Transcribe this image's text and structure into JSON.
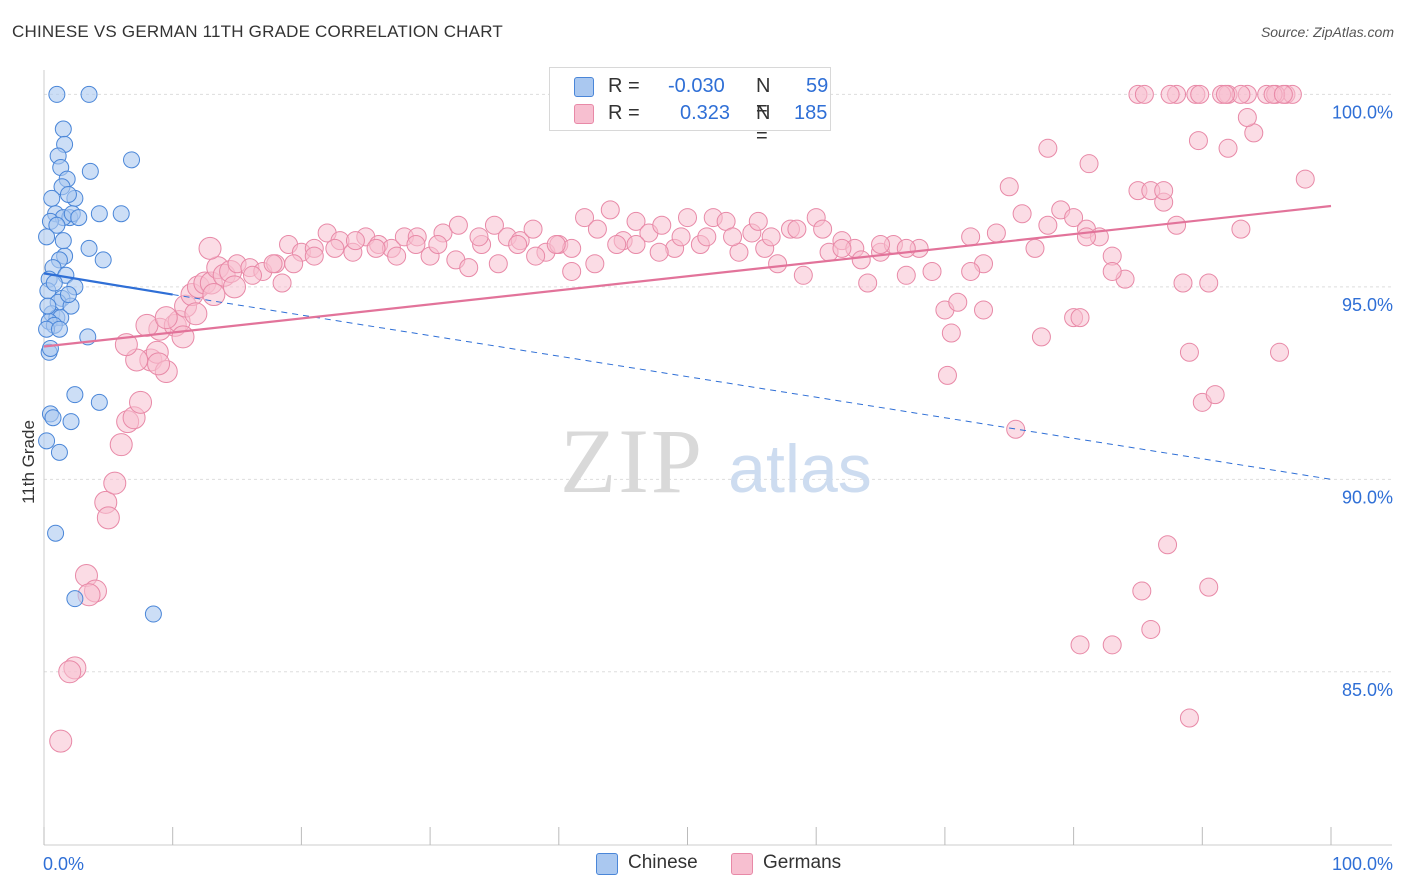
{
  "title": "CHINESE VS GERMAN 11TH GRADE CORRELATION CHART",
  "source": "Source: ZipAtlas.com",
  "watermark": {
    "zip": "ZIP",
    "atlas": "atlas"
  },
  "legend": {
    "rows": [
      {
        "r_label": "R =",
        "r_value": "-0.030",
        "n_label": "N =",
        "n_value": "59"
      },
      {
        "r_label": "R =",
        "r_value": "0.323",
        "n_label": "N =",
        "n_value": "185"
      }
    ]
  },
  "colors": {
    "chinese_fill": "#aac8f0",
    "chinese_stroke": "#4a86d8",
    "chinese_line": "#2f6fd6",
    "german_fill": "#f7bfd0",
    "german_stroke": "#e889a7",
    "german_line": "#e2739a",
    "grid": "#dddddd",
    "axis_text": "#2f6fd6"
  },
  "chart_data": {
    "type": "scatter",
    "title": "CHINESE VS GERMAN 11TH GRADE CORRELATION CHART",
    "xlabel": "",
    "ylabel": "11th Grade",
    "xlim": [
      0,
      100
    ],
    "ylim": [
      80.5,
      100.4
    ],
    "x_tick_labels": [
      "0.0%",
      "100.0%"
    ],
    "y_ticks": [
      {
        "value": 100,
        "label": "100.0%"
      },
      {
        "value": 95,
        "label": "95.0%"
      },
      {
        "value": 90,
        "label": "90.0%"
      },
      {
        "value": 85,
        "label": "85.0%"
      }
    ],
    "grid": true,
    "legend_position": "top-center",
    "series": [
      {
        "name": "Chinese",
        "r": -0.03,
        "n": 59,
        "trend": {
          "x0": 0,
          "y0": 95.35,
          "x1": 10,
          "y1": 94.8,
          "dashed_to_x": 100,
          "dashed_to_y": 90.0
        },
        "points": [
          [
            1.0,
            100.0
          ],
          [
            3.5,
            100.0
          ],
          [
            1.5,
            99.1
          ],
          [
            1.6,
            98.7
          ],
          [
            1.1,
            98.4
          ],
          [
            1.3,
            98.1
          ],
          [
            3.6,
            98.0
          ],
          [
            6.8,
            98.3
          ],
          [
            1.8,
            97.8
          ],
          [
            1.4,
            97.6
          ],
          [
            2.4,
            97.3
          ],
          [
            0.6,
            97.3
          ],
          [
            0.9,
            96.9
          ],
          [
            2.0,
            96.8
          ],
          [
            1.5,
            96.8
          ],
          [
            2.2,
            96.9
          ],
          [
            4.3,
            96.9
          ],
          [
            6.0,
            96.9
          ],
          [
            0.5,
            96.7
          ],
          [
            1.0,
            96.6
          ],
          [
            3.5,
            96.0
          ],
          [
            1.6,
            95.8
          ],
          [
            1.2,
            95.7
          ],
          [
            4.6,
            95.7
          ],
          [
            0.7,
            95.5
          ],
          [
            1.7,
            95.3
          ],
          [
            0.4,
            95.2
          ],
          [
            2.4,
            95.0
          ],
          [
            0.3,
            94.9
          ],
          [
            1.4,
            94.7
          ],
          [
            1.1,
            94.6
          ],
          [
            2.1,
            94.5
          ],
          [
            0.6,
            94.3
          ],
          [
            1.0,
            94.2
          ],
          [
            1.3,
            94.2
          ],
          [
            0.4,
            94.1
          ],
          [
            0.8,
            94.0
          ],
          [
            0.2,
            93.9
          ],
          [
            1.2,
            93.9
          ],
          [
            3.4,
            93.7
          ],
          [
            0.4,
            93.3
          ],
          [
            2.4,
            92.2
          ],
          [
            4.3,
            92.0
          ],
          [
            0.5,
            91.7
          ],
          [
            0.7,
            91.6
          ],
          [
            2.1,
            91.5
          ],
          [
            1.2,
            90.7
          ],
          [
            0.2,
            91.0
          ],
          [
            0.9,
            88.6
          ],
          [
            2.4,
            86.9
          ],
          [
            8.5,
            86.5
          ],
          [
            0.3,
            94.5
          ],
          [
            0.5,
            93.4
          ],
          [
            1.9,
            94.8
          ],
          [
            0.8,
            95.1
          ],
          [
            1.5,
            96.2
          ],
          [
            2.7,
            96.8
          ],
          [
            0.2,
            96.3
          ],
          [
            1.9,
            97.4
          ]
        ]
      },
      {
        "name": "Germans",
        "r": 0.323,
        "n": 185,
        "trend": {
          "x0": 0,
          "y0": 93.45,
          "x1": 100,
          "y1": 97.1
        },
        "points": [
          [
            1.3,
            83.2
          ],
          [
            2.4,
            85.1
          ],
          [
            2.0,
            85.0
          ],
          [
            3.3,
            87.5
          ],
          [
            4.0,
            87.1
          ],
          [
            3.5,
            87.0
          ],
          [
            4.8,
            89.4
          ],
          [
            5.0,
            89.0
          ],
          [
            5.5,
            89.9
          ],
          [
            6.0,
            90.9
          ],
          [
            6.5,
            91.5
          ],
          [
            7.0,
            91.6
          ],
          [
            7.5,
            92.0
          ],
          [
            8.3,
            93.1
          ],
          [
            8.8,
            93.3
          ],
          [
            9.5,
            92.8
          ],
          [
            8.9,
            93.0
          ],
          [
            9.0,
            93.9
          ],
          [
            10.2,
            94.0
          ],
          [
            10.5,
            94.1
          ],
          [
            11.0,
            94.5
          ],
          [
            11.5,
            94.8
          ],
          [
            12.0,
            95.0
          ],
          [
            12.5,
            95.1
          ],
          [
            13.0,
            95.1
          ],
          [
            13.5,
            95.5
          ],
          [
            14.0,
            95.3
          ],
          [
            14.5,
            95.4
          ],
          [
            15.0,
            95.6
          ],
          [
            16.0,
            95.5
          ],
          [
            17.0,
            95.4
          ],
          [
            18.0,
            95.6
          ],
          [
            18.5,
            95.1
          ],
          [
            19.0,
            96.1
          ],
          [
            20.0,
            95.9
          ],
          [
            21.0,
            96.0
          ],
          [
            22.0,
            96.4
          ],
          [
            23.0,
            96.2
          ],
          [
            24.0,
            95.9
          ],
          [
            25.0,
            96.3
          ],
          [
            26.0,
            96.1
          ],
          [
            27.0,
            96.0
          ],
          [
            28.0,
            96.3
          ],
          [
            29.0,
            96.3
          ],
          [
            30.0,
            95.8
          ],
          [
            31.0,
            96.4
          ],
          [
            32.0,
            95.7
          ],
          [
            33.0,
            95.5
          ],
          [
            34.0,
            96.1
          ],
          [
            35.0,
            96.6
          ],
          [
            36.0,
            96.3
          ],
          [
            37.0,
            96.2
          ],
          [
            38.0,
            96.5
          ],
          [
            39.0,
            95.9
          ],
          [
            40.0,
            96.1
          ],
          [
            41.0,
            96.0
          ],
          [
            42.0,
            96.8
          ],
          [
            43.0,
            96.5
          ],
          [
            44.0,
            97.0
          ],
          [
            45.0,
            96.2
          ],
          [
            46.0,
            96.7
          ],
          [
            47.0,
            96.4
          ],
          [
            48.0,
            96.6
          ],
          [
            49.0,
            96.0
          ],
          [
            50.0,
            96.8
          ],
          [
            51.0,
            96.1
          ],
          [
            52.0,
            96.8
          ],
          [
            53.0,
            96.7
          ],
          [
            54.0,
            95.9
          ],
          [
            55.0,
            96.4
          ],
          [
            56.0,
            96.0
          ],
          [
            57.0,
            95.6
          ],
          [
            58.0,
            96.5
          ],
          [
            59.0,
            95.3
          ],
          [
            60.0,
            96.8
          ],
          [
            61.0,
            95.9
          ],
          [
            62.0,
            96.2
          ],
          [
            63.0,
            96.0
          ],
          [
            64.0,
            95.1
          ],
          [
            65.0,
            95.9
          ],
          [
            66.0,
            96.1
          ],
          [
            67.0,
            95.3
          ],
          [
            68.0,
            96.0
          ],
          [
            69.0,
            95.4
          ],
          [
            70.0,
            94.4
          ],
          [
            71.0,
            94.6
          ],
          [
            72.0,
            96.3
          ],
          [
            73.0,
            95.6
          ],
          [
            74.0,
            96.4
          ],
          [
            75.0,
            97.6
          ],
          [
            76.0,
            96.9
          ],
          [
            77.0,
            96.0
          ],
          [
            78.0,
            96.6
          ],
          [
            79.0,
            97.0
          ],
          [
            80.0,
            96.8
          ],
          [
            81.0,
            96.5
          ],
          [
            82.0,
            96.3
          ],
          [
            83.0,
            95.8
          ],
          [
            84.0,
            95.2
          ],
          [
            85.0,
            97.5
          ],
          [
            86.0,
            97.5
          ],
          [
            87.0,
            97.2
          ],
          [
            88.0,
            96.6
          ],
          [
            89.0,
            93.3
          ],
          [
            90.0,
            92.0
          ],
          [
            91.0,
            92.2
          ],
          [
            88.5,
            95.1
          ],
          [
            90.5,
            95.1
          ],
          [
            93.0,
            96.5
          ],
          [
            94.0,
            99.0
          ],
          [
            96.0,
            93.3
          ],
          [
            98.0,
            97.8
          ],
          [
            85.0,
            100.0
          ],
          [
            88.0,
            100.0
          ],
          [
            89.5,
            100.0
          ],
          [
            92.0,
            100.0
          ],
          [
            93.5,
            100.0
          ],
          [
            95.0,
            100.0
          ],
          [
            96.5,
            100.0
          ],
          [
            97.0,
            100.0
          ],
          [
            91.5,
            100.0
          ],
          [
            93.0,
            100.0
          ],
          [
            95.7,
            100.0
          ],
          [
            87.5,
            100.0
          ],
          [
            95.5,
            100.0
          ],
          [
            89.8,
            100.0
          ],
          [
            91.8,
            100.0
          ],
          [
            96.3,
            100.0
          ],
          [
            87.3,
            88.3
          ],
          [
            90.5,
            87.2
          ],
          [
            85.3,
            87.1
          ],
          [
            83.0,
            85.7
          ],
          [
            80.5,
            85.7
          ],
          [
            86.0,
            86.1
          ],
          [
            89.0,
            83.8
          ],
          [
            72.0,
            95.4
          ],
          [
            70.5,
            93.8
          ],
          [
            73.0,
            94.4
          ],
          [
            70.2,
            92.7
          ],
          [
            75.5,
            91.3
          ],
          [
            77.5,
            93.7
          ],
          [
            80.0,
            94.2
          ],
          [
            80.5,
            94.2
          ],
          [
            81.0,
            96.3
          ],
          [
            83.0,
            95.4
          ],
          [
            87.0,
            97.5
          ],
          [
            92.0,
            98.6
          ],
          [
            89.7,
            98.8
          ],
          [
            93.5,
            99.4
          ],
          [
            85.5,
            100.0
          ],
          [
            78.0,
            98.6
          ],
          [
            81.2,
            98.2
          ],
          [
            67.0,
            96.0
          ],
          [
            65.0,
            96.1
          ],
          [
            63.5,
            95.7
          ],
          [
            62.0,
            96.0
          ],
          [
            60.5,
            96.5
          ],
          [
            58.5,
            96.5
          ],
          [
            56.5,
            96.3
          ],
          [
            55.5,
            96.7
          ],
          [
            53.5,
            96.3
          ],
          [
            51.5,
            96.3
          ],
          [
            49.5,
            96.3
          ],
          [
            47.8,
            95.9
          ],
          [
            46.0,
            96.1
          ],
          [
            44.5,
            96.1
          ],
          [
            42.8,
            95.6
          ],
          [
            41.0,
            95.4
          ],
          [
            39.8,
            96.1
          ],
          [
            38.2,
            95.8
          ],
          [
            36.8,
            96.1
          ],
          [
            35.3,
            95.6
          ],
          [
            33.8,
            96.3
          ],
          [
            32.2,
            96.6
          ],
          [
            30.6,
            96.1
          ],
          [
            28.9,
            96.1
          ],
          [
            27.4,
            95.8
          ],
          [
            25.8,
            96.0
          ],
          [
            24.2,
            96.2
          ],
          [
            22.6,
            96.0
          ],
          [
            21.0,
            95.8
          ],
          [
            19.4,
            95.6
          ],
          [
            17.8,
            95.6
          ],
          [
            16.2,
            95.3
          ],
          [
            8.0,
            94.0
          ],
          [
            9.5,
            94.2
          ],
          [
            11.8,
            94.3
          ],
          [
            13.2,
            94.8
          ],
          [
            14.8,
            95.0
          ],
          [
            12.9,
            96.0
          ],
          [
            10.8,
            93.7
          ],
          [
            7.2,
            93.1
          ],
          [
            6.4,
            93.5
          ]
        ]
      }
    ]
  }
}
